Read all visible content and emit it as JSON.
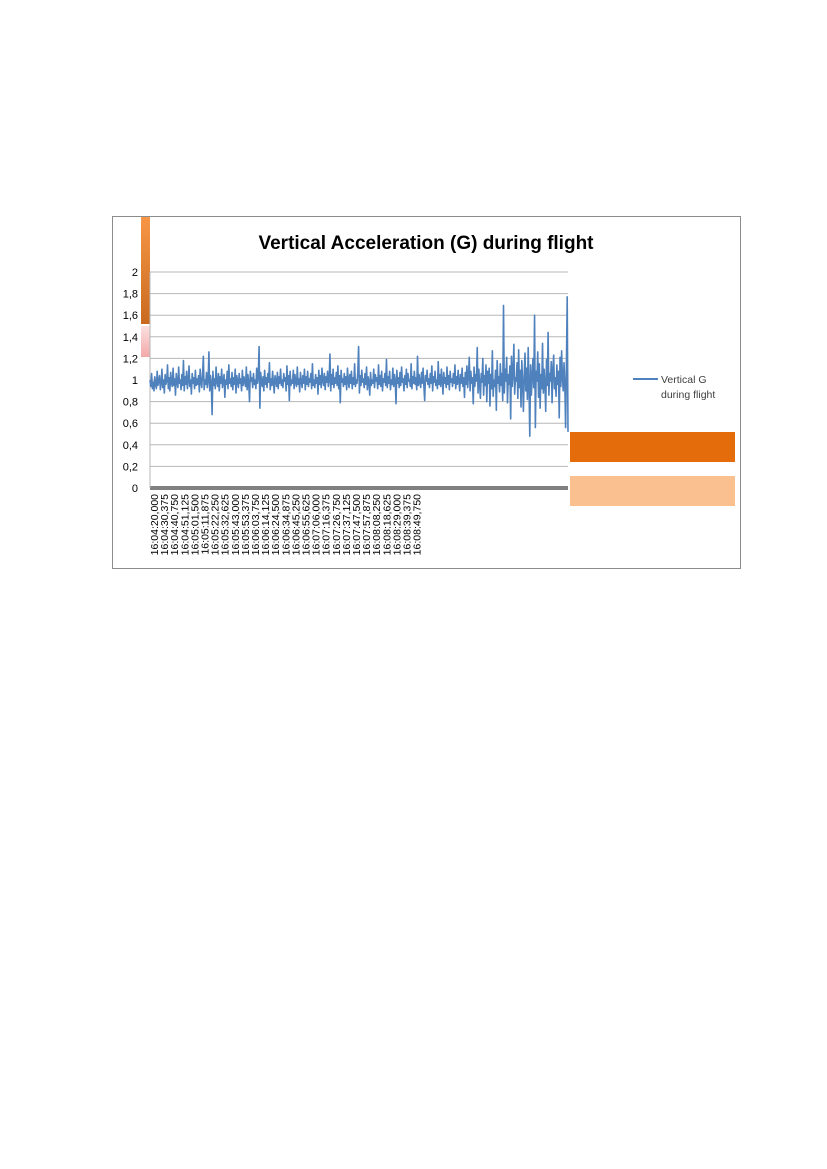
{
  "chart_data": {
    "type": "line",
    "title": "Vertical Acceleration (G) during flight",
    "xlabel": "",
    "ylabel": "",
    "ylim": [
      0,
      2
    ],
    "y_ticks": [
      "0",
      "0,2",
      "0,4",
      "0,6",
      "0,8",
      "1",
      "1,2",
      "1,4",
      "1,6",
      "1,8",
      "2"
    ],
    "y_tick_values": [
      0,
      0.2,
      0.4,
      0.6,
      0.8,
      1,
      1.2,
      1.4,
      1.6,
      1.8,
      2
    ],
    "grid": true,
    "legend_position": "right",
    "x_tick_labels": [
      "16:04:20,000",
      "16:04:30,375",
      "16:04:40,750",
      "16:04:51,125",
      "16:05:01,500",
      "16:05:11,875",
      "16:05:22,250",
      "16:05:32,625",
      "16:05:43,000",
      "16:05:53,375",
      "16:06:03,750",
      "16:06:14,125",
      "16:06:24,500",
      "16:06:34,875",
      "16:06:45,250",
      "16:06:55,625",
      "16:07:06,000",
      "16:07:16,375",
      "16:07:26,750",
      "16:07:37,125",
      "16:07:47,500",
      "16:07:57,875",
      "16:08:08,250",
      "16:08:18,625",
      "16:08:29,000",
      "16:08:39,375",
      "16:08:49,750"
    ],
    "series": [
      {
        "name": "Vertical G during flight",
        "color": "#4f81bd",
        "values": [
          1.0,
          0.94,
          1.06,
          0.92,
          0.98,
          0.9,
          1.03,
          0.96,
          0.92,
          1.08,
          0.95,
          0.99,
          1.04,
          0.91,
          0.97,
          1.1,
          0.93,
          1.0,
          0.88,
          1.05,
          0.96,
          0.99,
          1.14,
          0.92,
          1.02,
          0.9,
          1.07,
          0.97,
          0.94,
          1.11,
          0.95,
          1.01,
          0.86,
          1.06,
          0.98,
          0.93,
          1.12,
          0.97,
          1.0,
          0.91,
          1.05,
          0.95,
          1.18,
          0.9,
          1.03,
          0.96,
          1.08,
          0.92,
          0.99,
          1.13,
          0.94,
          1.0,
          0.87,
          1.06,
          0.97,
          1.02,
          0.92,
          1.09,
          0.95,
          1.01,
          0.96,
          1.04,
          0.89,
          1.1,
          0.98,
          0.93,
          1.05,
          1.22,
          0.91,
          1.0,
          0.96,
          1.07,
          0.93,
          0.99,
          1.26,
          0.9,
          1.04,
          0.97,
          0.68,
          1.08,
          0.95,
          1.01,
          0.92,
          1.12,
          0.98,
          0.94,
          1.06,
          0.9,
          1.03,
          0.97,
          1.1,
          0.93,
          0.99,
          1.05,
          0.84,
          1.0,
          0.96,
          1.08,
          0.92,
          1.14,
          0.97,
          1.01,
          0.94,
          1.07,
          0.91,
          1.02,
          0.96,
          1.1,
          0.88,
          1.04,
          0.99,
          0.93,
          1.06,
          0.97,
          1.01,
          0.9,
          1.09,
          0.95,
          1.03,
          0.98,
          0.94,
          1.12,
          0.91,
          1.05,
          0.97,
          0.8,
          1.08,
          0.99,
          1.02,
          0.93,
          1.06,
          0.96,
          1.0,
          0.92,
          1.11,
          0.97,
          1.04,
          1.31,
          0.74,
          1.07,
          0.99,
          0.94,
          1.03,
          0.9,
          1.09,
          0.96,
          1.02,
          0.93,
          1.06,
          0.98,
          1.16,
          0.91,
          1.01,
          0.95,
          1.08,
          0.97,
          0.88,
          1.04,
          1.0,
          0.94,
          1.07,
          0.92,
          1.03,
          0.97,
          1.1,
          0.95,
          1.0,
          0.93,
          1.06,
          0.99,
          1.02,
          0.9,
          1.13,
          0.96,
          1.04,
          0.81,
          1.08,
          0.95,
          1.0,
          0.97,
          1.09,
          0.92,
          1.05,
          0.98,
          0.94,
          1.12,
          0.96,
          1.01,
          0.89,
          1.07,
          0.99,
          0.93,
          1.04,
          0.97,
          1.1,
          0.91,
          1.03,
          0.96,
          1.08,
          0.94,
          1.01,
          0.98,
          1.06,
          0.92,
          1.15,
          0.95,
          1.0,
          0.93,
          1.05,
          0.97,
          1.02,
          0.87,
          1.09,
          0.96,
          1.04,
          0.93,
          1.11,
          0.99,
          0.95,
          1.06,
          0.91,
          1.03,
          0.98,
          1.08,
          0.94,
          1.0,
          1.24,
          0.9,
          1.05,
          0.96,
          1.1,
          0.93,
          1.02,
          0.97,
          1.07,
          0.95,
          1.13,
          0.92,
          1.04,
          0.79,
          1.09,
          0.98,
          1.01,
          0.94,
          1.06,
          0.96,
          1.03,
          0.91,
          1.11,
          0.99,
          0.93,
          1.05,
          0.97,
          1.08,
          0.92,
          1.02,
          0.96,
          1.15,
          0.94,
          1.0,
          0.97,
          1.07,
          1.31,
          0.88,
          1.04,
          0.95,
          1.09,
          0.98,
          1.01,
          0.93,
          1.06,
          0.96,
          1.12,
          0.91,
          1.03,
          0.98,
          0.86,
          1.07,
          0.95,
          1.0,
          0.97,
          1.1,
          0.93,
          1.05,
          0.99,
          1.02,
          0.92,
          1.14,
          0.96,
          1.04,
          0.94,
          1.08,
          0.9,
          1.01,
          0.98,
          1.06,
          0.95,
          1.19,
          0.93,
          1.03,
          0.97,
          1.08,
          0.91,
          1.0,
          0.96,
          1.11,
          0.94,
          1.05,
          0.99,
          0.78,
          1.09,
          0.97,
          1.02,
          0.93,
          1.07,
          0.95,
          1.12,
          0.98,
          1.01,
          0.9,
          1.04,
          0.96,
          1.1,
          0.93,
          1.06,
          0.99,
          1.0,
          0.94,
          1.15,
          0.92,
          1.03,
          0.97,
          1.08,
          0.96,
          1.02,
          0.91,
          1.22,
          0.95,
          1.05,
          0.98,
          0.93,
          1.07,
          0.97,
          1.11,
          0.94,
          0.81,
          1.04,
          0.99,
          1.09,
          0.96,
          1.01,
          0.93,
          1.06,
          0.97,
          1.13,
          0.9,
          1.03,
          0.98,
          1.08,
          0.95,
          1.0,
          0.92,
          1.17,
          0.96,
          1.05,
          0.94,
          1.1,
          0.99,
          0.87,
          1.07,
          0.97,
          1.02,
          0.93,
          1.12,
          0.96,
          1.04,
          0.91,
          1.08,
          0.98,
          1.01,
          0.94,
          1.06,
          0.97,
          1.14,
          0.92,
          1.03,
          0.96,
          1.09,
          0.99,
          0.9,
          1.05,
          0.97,
          1.11,
          0.94,
          1.02,
          0.84,
          1.07,
          0.96,
          1.13,
          0.93,
          1.04,
          1.21,
          0.9,
          1.08,
          0.97,
          1.02,
          0.78,
          1.12,
          0.94,
          1.05,
          0.99,
          1.3,
          0.88,
          1.1,
          0.96,
          0.83,
          1.06,
          0.98,
          1.2,
          0.86,
          1.04,
          0.95,
          1.14,
          0.8,
          1.08,
          0.97,
          1.11,
          0.76,
          1.05,
          0.92,
          1.27,
          0.85,
          1.0,
          0.94,
          1.09,
          0.72,
          1.18,
          0.97,
          1.03,
          0.89,
          1.15,
          0.95,
          1.06,
          0.81,
          1.69,
          0.88,
          1.1,
          0.99,
          1.21,
          0.79,
          1.05,
          0.96,
          1.13,
          0.64,
          1.22,
          0.94,
          1.07,
          1.33,
          0.87,
          1.02,
          0.99,
          1.16,
          0.83,
          1.28,
          0.93,
          1.09,
          0.75,
          1.18,
          0.98,
          0.71,
          1.04,
          1.25,
          0.9,
          1.11,
          0.82,
          1.3,
          0.96,
          0.48,
          1.14,
          0.86,
          1.03,
          1.2,
          0.93,
          1.6,
          0.56,
          1.08,
          0.99,
          1.26,
          0.84,
          1.15,
          0.74,
          1.05,
          0.92,
          1.34,
          0.88,
          1.1,
          0.97,
          0.71,
          1.19,
          0.95,
          1.44,
          0.86,
          1.06,
          0.99,
          1.17,
          0.79,
          1.09,
          1.23,
          0.92,
          1.02,
          0.85,
          1.14,
          0.96,
          1.08,
          0.65,
          1.21,
          0.94,
          1.27,
          1.02,
          0.9,
          1.16,
          0.97,
          0.56,
          1.12,
          1.77,
          0.52
        ]
      }
    ]
  },
  "colors": {
    "line": "#4f81bd",
    "grid": "#b7b7b7",
    "x_axis": "#808080",
    "orange_bar_top": "#f79646",
    "orange_bar_bottom": "#c96a1e",
    "pink_bar": "#f7c4c4",
    "legend_box_dark": "#e46c0a",
    "legend_box_light": "#fac090"
  }
}
